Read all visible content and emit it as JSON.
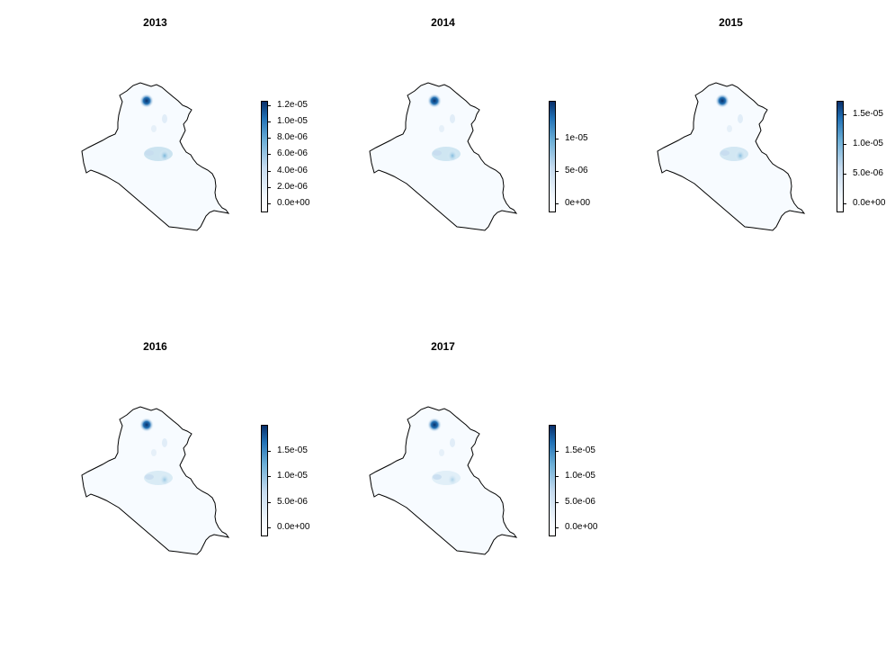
{
  "panels": [
    {
      "id": "2013",
      "title": "2013",
      "legend": {
        "min": 0,
        "max": 1.25e-05,
        "ticks": [
          {
            "value": 0,
            "label": "0.0e+00"
          },
          {
            "value": 2e-06,
            "label": "2.0e-06"
          },
          {
            "value": 4e-06,
            "label": "4.0e-06"
          },
          {
            "value": 6e-06,
            "label": "6.0e-06"
          },
          {
            "value": 8e-06,
            "label": "8.0e-06"
          },
          {
            "value": 1e-05,
            "label": "1.0e-05"
          },
          {
            "value": 1.2e-05,
            "label": "1.2e-05"
          }
        ]
      }
    },
    {
      "id": "2014",
      "title": "2014",
      "legend": {
        "min": 0,
        "max": 1.58e-05,
        "ticks": [
          {
            "value": 0,
            "label": "0e+00"
          },
          {
            "value": 5e-06,
            "label": "5e-06"
          },
          {
            "value": 1e-05,
            "label": "1e-05"
          }
        ]
      }
    },
    {
      "id": "2015",
      "title": "2015",
      "legend": {
        "min": 0,
        "max": 1.72e-05,
        "ticks": [
          {
            "value": 0,
            "label": "0.0e+00"
          },
          {
            "value": 5e-06,
            "label": "5.0e-06"
          },
          {
            "value": 1e-05,
            "label": "1.0e-05"
          },
          {
            "value": 1.5e-05,
            "label": "1.5e-05"
          }
        ]
      }
    },
    {
      "id": "2016",
      "title": "2016",
      "legend": {
        "min": 0,
        "max": 2e-05,
        "ticks": [
          {
            "value": 0,
            "label": "0.0e+00"
          },
          {
            "value": 5e-06,
            "label": "5.0e-06"
          },
          {
            "value": 1e-05,
            "label": "1.0e-05"
          },
          {
            "value": 1.5e-05,
            "label": "1.5e-05"
          }
        ]
      }
    },
    {
      "id": "2017",
      "title": "2017",
      "legend": {
        "min": 0,
        "max": 2e-05,
        "ticks": [
          {
            "value": 0,
            "label": "0.0e+00"
          },
          {
            "value": 5e-06,
            "label": "5.0e-06"
          },
          {
            "value": 1e-05,
            "label": "1.0e-05"
          },
          {
            "value": 1.5e-05,
            "label": "1.5e-05"
          }
        ]
      }
    }
  ],
  "colors": {
    "low": "#f7fbff",
    "mid": "#9ecae1",
    "high": "#08306b",
    "border": "#000000"
  }
}
